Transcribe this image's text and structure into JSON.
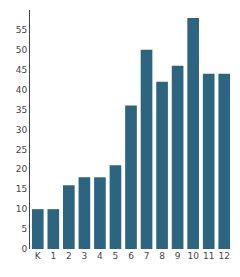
{
  "chart_data": {
    "type": "bar",
    "categories": [
      "K",
      "1",
      "2",
      "3",
      "4",
      "5",
      "6",
      "7",
      "8",
      "9",
      "10",
      "11",
      "12"
    ],
    "values": [
      10,
      10,
      16,
      18,
      18,
      21,
      36,
      50,
      42,
      46,
      58,
      44,
      44
    ],
    "color": "#2d6480",
    "ylim": [
      0,
      60
    ],
    "yticks": [
      0,
      5,
      10,
      15,
      20,
      25,
      30,
      35,
      40,
      45,
      50,
      55
    ],
    "grid": false
  }
}
